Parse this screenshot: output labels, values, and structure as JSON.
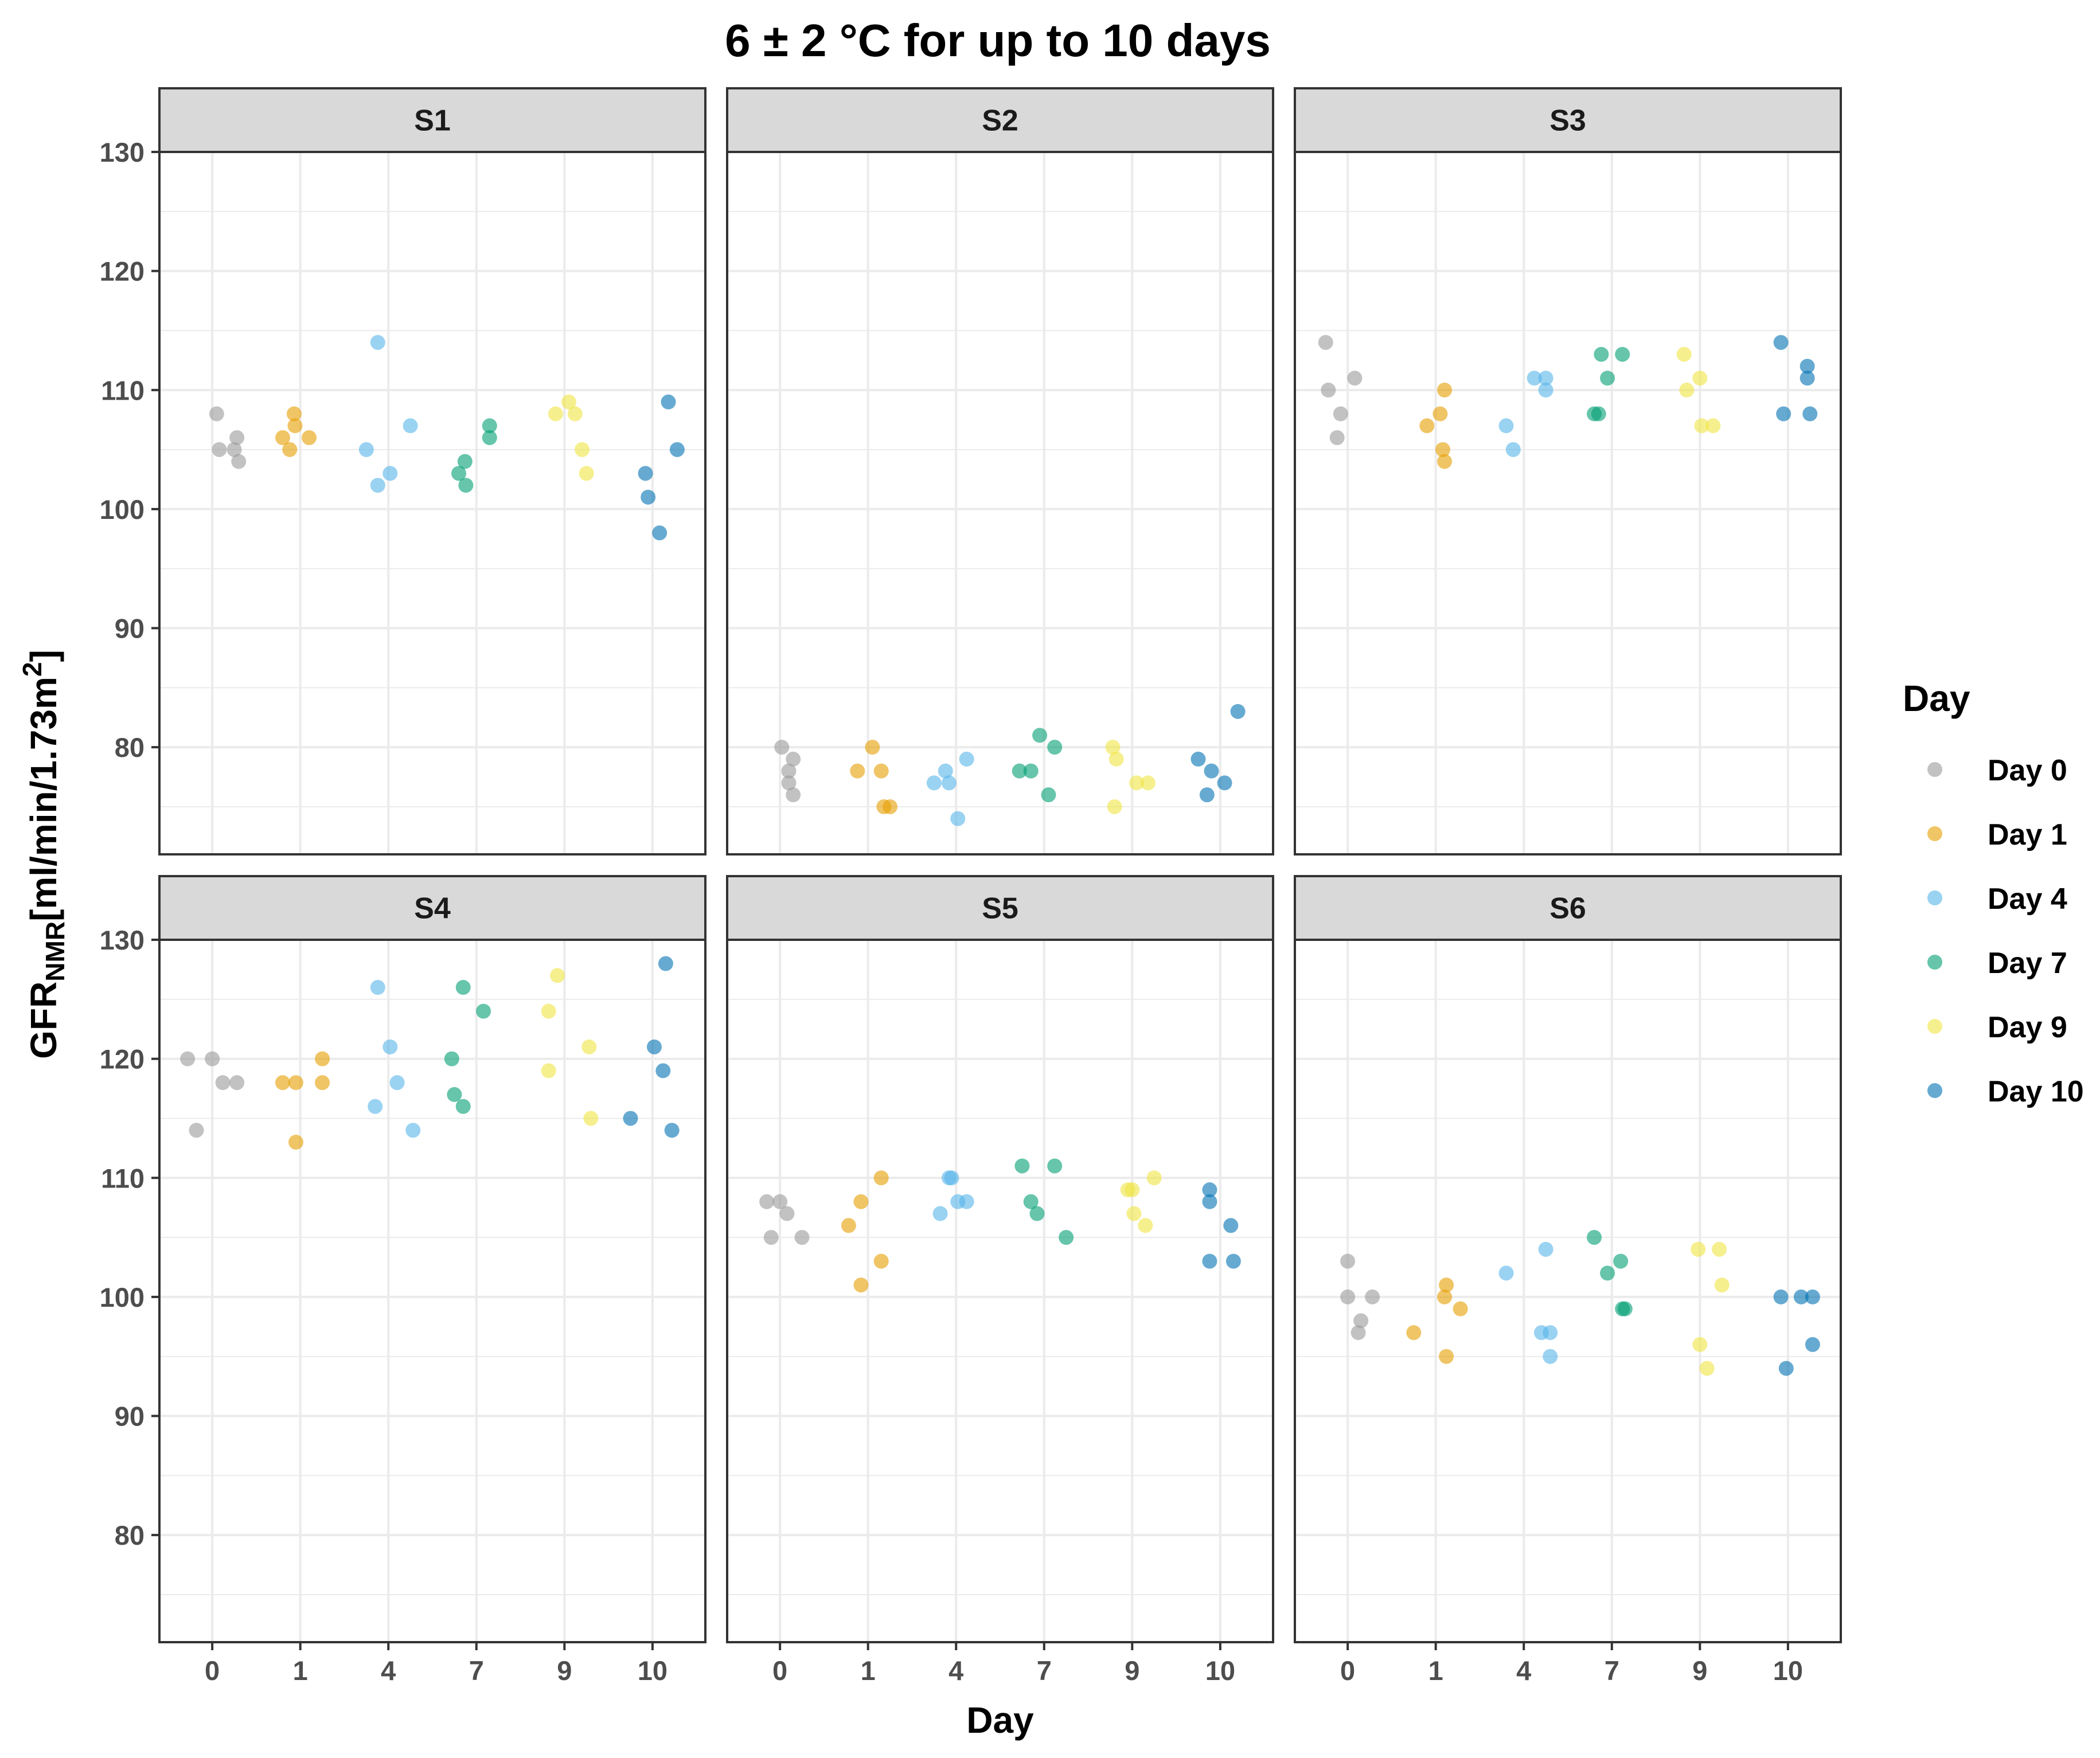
{
  "chart_data": {
    "type": "scatter",
    "title": "6 ± 2 °C for up to 10 days",
    "xlabel": "Day",
    "ylabel_main": "GFR",
    "ylabel_sub": "NMR",
    "ylabel_unit": "[ml/min/1.73m",
    "ylabel_sup": "2",
    "ylabel_close": "]",
    "categories": [
      "0",
      "1",
      "4",
      "7",
      "9",
      "10"
    ],
    "y_ticks": [
      80,
      90,
      100,
      110,
      120,
      130
    ],
    "rows": [
      {
        "ylim": [
          71,
          130
        ]
      },
      {
        "ylim": [
          71,
          130
        ]
      }
    ],
    "legend": {
      "title": "Day",
      "entries": [
        {
          "label": "Day 0",
          "color": "#999999"
        },
        {
          "label": "Day 1",
          "color": "#E69F00"
        },
        {
          "label": "Day 4",
          "color": "#56B4E9"
        },
        {
          "label": "Day 7",
          "color": "#009E73"
        },
        {
          "label": "Day 9",
          "color": "#F0E442"
        },
        {
          "label": "Day 10",
          "color": "#0072B2"
        }
      ]
    },
    "panels": [
      {
        "name": "S1",
        "series": [
          {
            "name": "Day 0",
            "points": [
              [
                0.05,
                108
              ],
              [
                0.08,
                105
              ],
              [
                0.25,
                105
              ],
              [
                0.28,
                106
              ],
              [
                0.3,
                104
              ]
            ]
          },
          {
            "name": "Day 1",
            "points": [
              [
                -0.2,
                106
              ],
              [
                -0.12,
                105
              ],
              [
                -0.06,
                107
              ],
              [
                -0.07,
                108
              ],
              [
                0.1,
                106
              ]
            ]
          },
          {
            "name": "Day 4",
            "points": [
              [
                -0.25,
                105
              ],
              [
                -0.12,
                114
              ],
              [
                -0.12,
                102
              ],
              [
                0.02,
                103
              ],
              [
                0.25,
                107
              ]
            ]
          },
          {
            "name": "Day 7",
            "points": [
              [
                -0.2,
                103
              ],
              [
                -0.13,
                104
              ],
              [
                -0.12,
                102
              ],
              [
                0.15,
                107
              ],
              [
                0.15,
                106
              ]
            ]
          },
          {
            "name": "Day 9",
            "points": [
              [
                -0.1,
                108
              ],
              [
                0.05,
                109
              ],
              [
                0.12,
                108
              ],
              [
                0.2,
                105
              ],
              [
                0.25,
                103
              ]
            ]
          },
          {
            "name": "Day 10",
            "points": [
              [
                -0.08,
                103
              ],
              [
                -0.05,
                101
              ],
              [
                0.08,
                98
              ],
              [
                0.18,
                109
              ],
              [
                0.28,
                105
              ]
            ]
          }
        ]
      },
      {
        "name": "S2",
        "series": [
          {
            "name": "Day 0",
            "points": [
              [
                0.02,
                80
              ],
              [
                0.1,
                78
              ],
              [
                0.15,
                79
              ],
              [
                0.1,
                77
              ],
              [
                0.15,
                76
              ]
            ]
          },
          {
            "name": "Day 1",
            "points": [
              [
                -0.12,
                78
              ],
              [
                0.05,
                80
              ],
              [
                0.15,
                78
              ],
              [
                0.18,
                75
              ],
              [
                0.25,
                75
              ]
            ]
          },
          {
            "name": "Day 4",
            "points": [
              [
                -0.25,
                77
              ],
              [
                -0.12,
                78
              ],
              [
                -0.08,
                77
              ],
              [
                0.02,
                74
              ],
              [
                0.12,
                79
              ]
            ]
          },
          {
            "name": "Day 7",
            "points": [
              [
                -0.28,
                78
              ],
              [
                -0.15,
                78
              ],
              [
                -0.05,
                81
              ],
              [
                0.05,
                76
              ],
              [
                0.12,
                80
              ]
            ]
          },
          {
            "name": "Day 9",
            "points": [
              [
                -0.22,
                80
              ],
              [
                -0.18,
                79
              ],
              [
                -0.2,
                75
              ],
              [
                0.05,
                77
              ],
              [
                0.18,
                77
              ]
            ]
          },
          {
            "name": "Day 10",
            "points": [
              [
                -0.25,
                79
              ],
              [
                -0.15,
                76
              ],
              [
                -0.1,
                78
              ],
              [
                0.05,
                77
              ],
              [
                0.2,
                83
              ]
            ]
          }
        ]
      },
      {
        "name": "S3",
        "series": [
          {
            "name": "Day 0",
            "points": [
              [
                -0.25,
                114
              ],
              [
                -0.22,
                110
              ],
              [
                -0.08,
                108
              ],
              [
                0.08,
                111
              ],
              [
                -0.12,
                106
              ]
            ]
          },
          {
            "name": "Day 1",
            "points": [
              [
                -0.1,
                107
              ],
              [
                0.05,
                108
              ],
              [
                0.1,
                110
              ],
              [
                0.08,
                105
              ],
              [
                0.1,
                104
              ]
            ]
          },
          {
            "name": "Day 4",
            "points": [
              [
                -0.2,
                107
              ],
              [
                -0.12,
                105
              ],
              [
                0.12,
                111
              ],
              [
                0.25,
                111
              ],
              [
                0.25,
                110
              ]
            ]
          },
          {
            "name": "Day 7",
            "points": [
              [
                -0.2,
                108
              ],
              [
                -0.15,
                108
              ],
              [
                -0.12,
                113
              ],
              [
                -0.05,
                111
              ],
              [
                0.12,
                113
              ]
            ]
          },
          {
            "name": "Day 9",
            "points": [
              [
                -0.18,
                113
              ],
              [
                -0.15,
                110
              ],
              [
                0.0,
                111
              ],
              [
                0.02,
                107
              ],
              [
                0.15,
                107
              ]
            ]
          },
          {
            "name": "Day 10",
            "points": [
              [
                -0.08,
                114
              ],
              [
                -0.05,
                108
              ],
              [
                0.22,
                112
              ],
              [
                0.22,
                111
              ],
              [
                0.25,
                108
              ]
            ]
          }
        ]
      },
      {
        "name": "S4",
        "series": [
          {
            "name": "Day 0",
            "points": [
              [
                -0.28,
                120
              ],
              [
                -0.18,
                114
              ],
              [
                0.0,
                120
              ],
              [
                0.12,
                118
              ],
              [
                0.28,
                118
              ]
            ]
          },
          {
            "name": "Day 1",
            "points": [
              [
                -0.2,
                118
              ],
              [
                -0.05,
                118
              ],
              [
                -0.05,
                113
              ],
              [
                0.25,
                120
              ],
              [
                0.25,
                118
              ]
            ]
          },
          {
            "name": "Day 4",
            "points": [
              [
                -0.12,
                126
              ],
              [
                -0.15,
                116
              ],
              [
                0.02,
                121
              ],
              [
                0.1,
                118
              ],
              [
                0.28,
                114
              ]
            ]
          },
          {
            "name": "Day 7",
            "points": [
              [
                -0.28,
                120
              ],
              [
                -0.25,
                117
              ],
              [
                -0.15,
                126
              ],
              [
                -0.15,
                116
              ],
              [
                0.08,
                124
              ]
            ]
          },
          {
            "name": "Day 9",
            "points": [
              [
                -0.18,
                124
              ],
              [
                -0.18,
                119
              ],
              [
                -0.08,
                127
              ],
              [
                0.28,
                121
              ],
              [
                0.3,
                115
              ]
            ]
          },
          {
            "name": "Day 10",
            "points": [
              [
                -0.25,
                115
              ],
              [
                0.02,
                121
              ],
              [
                0.12,
                119
              ],
              [
                0.15,
                128
              ],
              [
                0.22,
                114
              ]
            ]
          }
        ]
      },
      {
        "name": "S5",
        "series": [
          {
            "name": "Day 0",
            "points": [
              [
                -0.15,
                108
              ],
              [
                0.0,
                108
              ],
              [
                0.08,
                107
              ],
              [
                -0.1,
                105
              ],
              [
                0.25,
                105
              ]
            ]
          },
          {
            "name": "Day 1",
            "points": [
              [
                -0.22,
                106
              ],
              [
                -0.08,
                108
              ],
              [
                -0.08,
                101
              ],
              [
                0.15,
                110
              ],
              [
                0.15,
                103
              ]
            ]
          },
          {
            "name": "Day 4",
            "points": [
              [
                -0.18,
                107
              ],
              [
                -0.08,
                110
              ],
              [
                -0.05,
                110
              ],
              [
                0.02,
                108
              ],
              [
                0.12,
                108
              ]
            ]
          },
          {
            "name": "Day 7",
            "points": [
              [
                -0.25,
                111
              ],
              [
                -0.15,
                108
              ],
              [
                -0.08,
                107
              ],
              [
                0.12,
                111
              ],
              [
                0.25,
                105
              ]
            ]
          },
          {
            "name": "Day 9",
            "points": [
              [
                -0.05,
                109
              ],
              [
                0.02,
                107
              ],
              [
                0.0,
                109
              ],
              [
                0.15,
                106
              ],
              [
                0.25,
                110
              ]
            ]
          },
          {
            "name": "Day 10",
            "points": [
              [
                -0.12,
                109
              ],
              [
                -0.12,
                108
              ],
              [
                -0.12,
                103
              ],
              [
                0.12,
                106
              ],
              [
                0.15,
                103
              ]
            ]
          }
        ]
      },
      {
        "name": "S6",
        "series": [
          {
            "name": "Day 0",
            "points": [
              [
                0.0,
                103
              ],
              [
                0.0,
                100
              ],
              [
                0.15,
                98
              ],
              [
                0.12,
                97
              ],
              [
                0.28,
                100
              ]
            ]
          },
          {
            "name": "Day 1",
            "points": [
              [
                -0.25,
                97
              ],
              [
                0.12,
                101
              ],
              [
                0.1,
                100
              ],
              [
                0.12,
                95
              ],
              [
                0.28,
                99
              ]
            ]
          },
          {
            "name": "Day 4",
            "points": [
              [
                -0.2,
                102
              ],
              [
                0.2,
                97
              ],
              [
                0.25,
                104
              ],
              [
                0.3,
                97
              ],
              [
                0.3,
                95
              ]
            ]
          },
          {
            "name": "Day 7",
            "points": [
              [
                -0.2,
                105
              ],
              [
                -0.05,
                102
              ],
              [
                0.1,
                103
              ],
              [
                0.12,
                99
              ],
              [
                0.15,
                99
              ]
            ]
          },
          {
            "name": "Day 9",
            "points": [
              [
                -0.02,
                104
              ],
              [
                0.0,
                96
              ],
              [
                0.08,
                94
              ],
              [
                0.22,
                104
              ],
              [
                0.25,
                101
              ]
            ]
          },
          {
            "name": "Day 10",
            "points": [
              [
                -0.08,
                100
              ],
              [
                -0.02,
                94
              ],
              [
                0.15,
                100
              ],
              [
                0.28,
                100
              ],
              [
                0.28,
                96
              ]
            ]
          }
        ]
      }
    ]
  }
}
